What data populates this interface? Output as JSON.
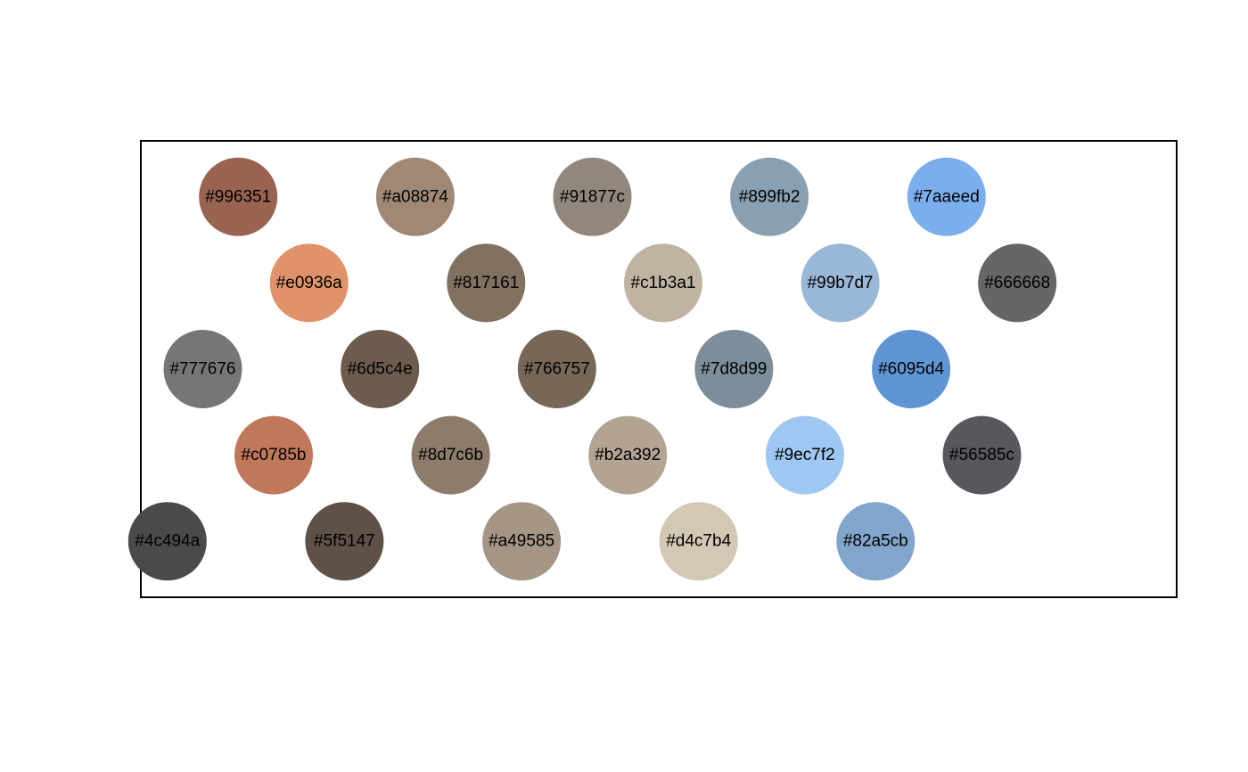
{
  "chart_data": {
    "type": "scatter",
    "title": "",
    "xlabel": "",
    "ylabel": "",
    "grid": false,
    "legend": "none",
    "axes_visible": false,
    "frame": true,
    "xlim": [
      0.45,
      6.3
    ],
    "ylim": [
      0.35,
      5.65
    ],
    "points": [
      {
        "row": 5,
        "col": 1,
        "label": "#996351",
        "color": "#996351"
      },
      {
        "row": 5,
        "col": 2,
        "label": "#a08874",
        "color": "#a08874"
      },
      {
        "row": 5,
        "col": 3,
        "label": "#91877c",
        "color": "#91877c"
      },
      {
        "row": 5,
        "col": 4,
        "label": "#899fb2",
        "color": "#899fb2"
      },
      {
        "row": 5,
        "col": 5,
        "label": "#7aaeed",
        "color": "#7aaeed"
      },
      {
        "row": 4,
        "col": 1.4,
        "label": "#e0936a",
        "color": "#e0936a"
      },
      {
        "row": 4,
        "col": 2.4,
        "label": "#817161",
        "color": "#817161"
      },
      {
        "row": 4,
        "col": 3.4,
        "label": "#c1b3a1",
        "color": "#c1b3a1"
      },
      {
        "row": 4,
        "col": 4.4,
        "label": "#99b7d7",
        "color": "#99b7d7"
      },
      {
        "row": 4,
        "col": 5.4,
        "label": "#666668",
        "color": "#666668"
      },
      {
        "row": 3,
        "col": 0.8,
        "label": "#777676",
        "color": "#777676"
      },
      {
        "row": 3,
        "col": 1.8,
        "label": "#6d5c4e",
        "color": "#6d5c4e"
      },
      {
        "row": 3,
        "col": 2.8,
        "label": "#766757",
        "color": "#766757"
      },
      {
        "row": 3,
        "col": 3.8,
        "label": "#7d8d99",
        "color": "#7d8d99"
      },
      {
        "row": 3,
        "col": 4.8,
        "label": "#6095d4",
        "color": "#6095d4"
      },
      {
        "row": 2,
        "col": 1.2,
        "label": "#c0785b",
        "color": "#c0785b"
      },
      {
        "row": 2,
        "col": 2.2,
        "label": "#8d7c6b",
        "color": "#8d7c6b"
      },
      {
        "row": 2,
        "col": 3.2,
        "label": "#b2a392",
        "color": "#b2a392"
      },
      {
        "row": 2,
        "col": 4.2,
        "label": "#9ec7f2",
        "color": "#9ec7f2"
      },
      {
        "row": 2,
        "col": 5.2,
        "label": "#56585c",
        "color": "#56585c"
      },
      {
        "row": 1,
        "col": 0.6,
        "label": "#4c494a",
        "color": "#4c494a"
      },
      {
        "row": 1,
        "col": 1.6,
        "label": "#5f5147",
        "color": "#5f5147"
      },
      {
        "row": 1,
        "col": 2.6,
        "label": "#a49585",
        "color": "#a49585"
      },
      {
        "row": 1,
        "col": 3.6,
        "label": "#d4c7b4",
        "color": "#d4c7b4"
      },
      {
        "row": 1,
        "col": 4.6,
        "label": "#82a5cb",
        "color": "#82a5cb"
      }
    ]
  },
  "style": {
    "frame_color": "#000000",
    "label_color": "#000000",
    "background": "#ffffff"
  }
}
